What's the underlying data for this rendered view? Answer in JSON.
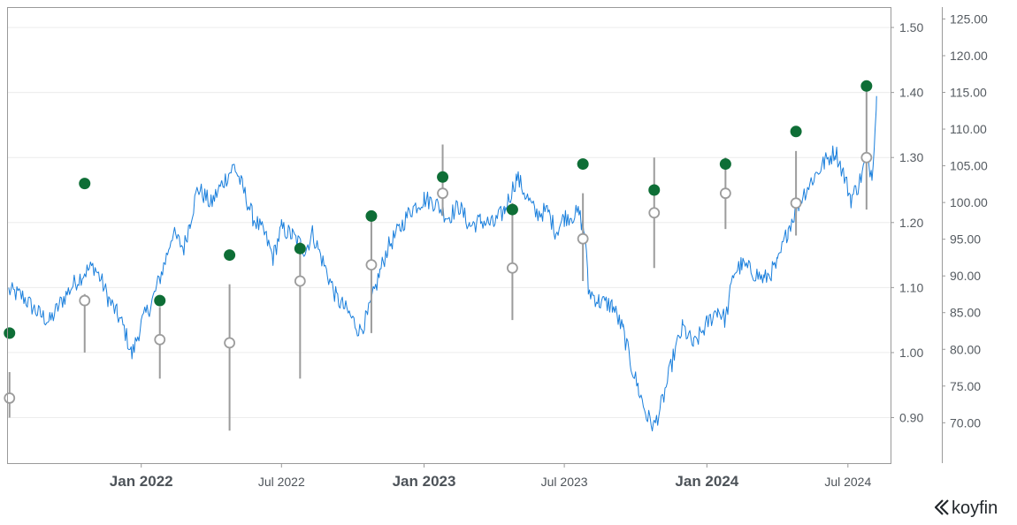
{
  "brand": {
    "name": "koyfin"
  },
  "colors": {
    "price_line": "#1a7fdc",
    "actual_marker": "#0e6e36",
    "estimate_marker_stroke": "#9c9c9c",
    "estimate_range": "#9c9c9c",
    "gridline": "#ececec",
    "frame": "#9a9a9a"
  },
  "chart_data": {
    "type": "line",
    "x_ticks": [
      {
        "label": "Jan 2022",
        "date": "2022-01-01",
        "major": true
      },
      {
        "label": "Jul 2022",
        "date": "2022-07-01",
        "major": false
      },
      {
        "label": "Jan 2023",
        "date": "2023-01-01",
        "major": true
      },
      {
        "label": "Jul 2023",
        "date": "2023-07-01",
        "major": false
      },
      {
        "label": "Jan 2024",
        "date": "2024-01-01",
        "major": true
      },
      {
        "label": "Jul 2024",
        "date": "2024-07-01",
        "major": false
      }
    ],
    "x_range": [
      "2021-07-13",
      "2024-08-25"
    ],
    "eps_axis": {
      "ticks": [
        "0.90",
        "1.00",
        "1.10",
        "1.20",
        "1.30",
        "1.40",
        "1.50"
      ],
      "range": [
        0.83,
        1.53
      ],
      "grid": true
    },
    "price_axis": {
      "ticks": [
        "70.00",
        "75.00",
        "80.00",
        "85.00",
        "90.00",
        "95.00",
        "100.00",
        "105.00",
        "110.00",
        "115.00",
        "120.00",
        "125.00"
      ],
      "range": [
        64.5,
        126.5
      ]
    },
    "price_series": {
      "points": [
        [
          "2021-07-14",
          88.0
        ],
        [
          "2021-08-01",
          87.2
        ],
        [
          "2021-08-20",
          85.0
        ],
        [
          "2021-09-05",
          83.8
        ],
        [
          "2021-09-20",
          86.5
        ],
        [
          "2021-10-05",
          88.8
        ],
        [
          "2021-10-20",
          90.5
        ],
        [
          "2021-11-01",
          91.3
        ],
        [
          "2021-11-10",
          89.5
        ],
        [
          "2021-11-20",
          86.8
        ],
        [
          "2021-12-01",
          84.8
        ],
        [
          "2021-12-10",
          82.8
        ],
        [
          "2021-12-20",
          79.2
        ],
        [
          "2022-01-01",
          83.5
        ],
        [
          "2022-01-15",
          86.5
        ],
        [
          "2022-02-01",
          92.0
        ],
        [
          "2022-02-10",
          95.8
        ],
        [
          "2022-02-25",
          93.8
        ],
        [
          "2022-03-05",
          97.5
        ],
        [
          "2022-03-15",
          102.0
        ],
        [
          "2022-04-01",
          99.8
        ],
        [
          "2022-04-15",
          102.5
        ],
        [
          "2022-05-01",
          105.0
        ],
        [
          "2022-05-12",
          102.0
        ],
        [
          "2022-05-25",
          98.0
        ],
        [
          "2022-06-10",
          95.5
        ],
        [
          "2022-06-20",
          92.5
        ],
        [
          "2022-07-01",
          96.5
        ],
        [
          "2022-07-15",
          95.5
        ],
        [
          "2022-08-01",
          93.5
        ],
        [
          "2022-08-10",
          95.8
        ],
        [
          "2022-08-25",
          91.5
        ],
        [
          "2022-09-10",
          87.0
        ],
        [
          "2022-09-25",
          85.0
        ],
        [
          "2022-10-10",
          82.5
        ],
        [
          "2022-10-20",
          84.5
        ],
        [
          "2022-11-05",
          90.5
        ],
        [
          "2022-11-15",
          93.8
        ],
        [
          "2022-12-01",
          96.5
        ],
        [
          "2022-12-15",
          99.0
        ],
        [
          "2023-01-01",
          100.5
        ],
        [
          "2023-01-15",
          100.0
        ],
        [
          "2023-02-01",
          98.0
        ],
        [
          "2023-02-15",
          99.5
        ],
        [
          "2023-03-01",
          96.8
        ],
        [
          "2023-03-15",
          97.5
        ],
        [
          "2023-04-01",
          97.0
        ],
        [
          "2023-04-15",
          99.0
        ],
        [
          "2023-05-01",
          103.5
        ],
        [
          "2023-05-10",
          101.5
        ],
        [
          "2023-05-25",
          98.5
        ],
        [
          "2023-06-10",
          98.8
        ],
        [
          "2023-06-20",
          96.0
        ],
        [
          "2023-07-01",
          98.0
        ],
        [
          "2023-07-20",
          98.5
        ],
        [
          "2023-07-28",
          95.5
        ],
        [
          "2023-08-01",
          88.0
        ],
        [
          "2023-08-15",
          86.5
        ],
        [
          "2023-09-01",
          86.0
        ],
        [
          "2023-09-15",
          82.5
        ],
        [
          "2023-09-25",
          78.0
        ],
        [
          "2023-10-05",
          74.5
        ],
        [
          "2023-10-15",
          71.0
        ],
        [
          "2023-10-25",
          69.5
        ],
        [
          "2023-11-05",
          73.0
        ],
        [
          "2023-11-20",
          79.5
        ],
        [
          "2023-12-01",
          83.0
        ],
        [
          "2023-12-15",
          80.5
        ],
        [
          "2024-01-01",
          83.5
        ],
        [
          "2024-01-15",
          85.5
        ],
        [
          "2024-01-25",
          84.0
        ],
        [
          "2024-02-05",
          90.5
        ],
        [
          "2024-02-15",
          91.5
        ],
        [
          "2024-03-01",
          90.5
        ],
        [
          "2024-03-15",
          89.5
        ],
        [
          "2024-04-01",
          91.5
        ],
        [
          "2024-04-15",
          96.5
        ],
        [
          "2024-05-01",
          100.5
        ],
        [
          "2024-05-15",
          103.0
        ],
        [
          "2024-06-01",
          105.5
        ],
        [
          "2024-06-15",
          107.0
        ],
        [
          "2024-06-25",
          104.0
        ],
        [
          "2024-07-05",
          100.5
        ],
        [
          "2024-07-15",
          102.5
        ],
        [
          "2024-07-25",
          106.0
        ],
        [
          "2024-08-01",
          104.0
        ],
        [
          "2024-08-05",
          110.0
        ],
        [
          "2024-08-07",
          114.5
        ]
      ]
    },
    "eps_actual": [
      [
        "2021-07-15",
        1.03
      ],
      [
        "2021-10-20",
        1.26
      ],
      [
        "2022-01-25",
        1.08
      ],
      [
        "2022-04-25",
        1.15
      ],
      [
        "2022-07-25",
        1.16
      ],
      [
        "2022-10-25",
        1.21
      ],
      [
        "2023-01-25",
        1.27
      ],
      [
        "2023-04-25",
        1.22
      ],
      [
        "2023-07-25",
        1.29
      ],
      [
        "2023-10-25",
        1.25
      ],
      [
        "2024-01-25",
        1.29
      ],
      [
        "2024-04-25",
        1.34
      ],
      [
        "2024-07-25",
        1.41
      ]
    ],
    "eps_estimate": [
      {
        "date": "2021-07-15",
        "mean": 0.93,
        "low": 0.9,
        "high": 0.97
      },
      {
        "date": "2021-10-20",
        "mean": 1.08,
        "low": 1.0,
        "high": 1.09
      },
      {
        "date": "2022-01-25",
        "mean": 1.02,
        "low": 0.96,
        "high": 1.07
      },
      {
        "date": "2022-04-25",
        "mean": 1.015,
        "low": 0.88,
        "high": 1.105
      },
      {
        "date": "2022-07-25",
        "mean": 1.11,
        "low": 0.96,
        "high": 1.17
      },
      {
        "date": "2022-10-25",
        "mean": 1.135,
        "low": 1.03,
        "high": 1.21
      },
      {
        "date": "2023-01-25",
        "mean": 1.245,
        "low": 1.21,
        "high": 1.32
      },
      {
        "date": "2023-04-25",
        "mean": 1.13,
        "low": 1.05,
        "high": 1.23
      },
      {
        "date": "2023-07-25",
        "mean": 1.175,
        "low": 1.11,
        "high": 1.245
      },
      {
        "date": "2023-10-25",
        "mean": 1.215,
        "low": 1.13,
        "high": 1.3
      },
      {
        "date": "2024-01-25",
        "mean": 1.245,
        "low": 1.19,
        "high": 1.3
      },
      {
        "date": "2024-04-25",
        "mean": 1.23,
        "low": 1.18,
        "high": 1.31
      },
      {
        "date": "2024-07-25",
        "mean": 1.3,
        "low": 1.22,
        "high": 1.41
      }
    ]
  }
}
